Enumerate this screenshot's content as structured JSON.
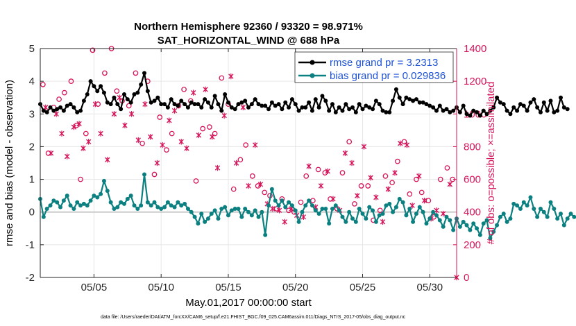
{
  "chart_data": {
    "type": "line",
    "title_line1": "Northern Hemisphere 92360 / 93320 = 98.971%",
    "title_line2": "SAT_HORIZONTAL_WIND @ 688 hPa",
    "xlabel": "May.01,2017 00:00:00 start",
    "ylabel_left": "rmse and bias (model - observation)",
    "ylabel_right": "# of obs: o=possible; ×=assimilated",
    "footnote": "data file: /Users/raeder/DAI/ATM_forcXX/CAM6_setup/f.e21.FHIST_BGC.f09_025.CAM6assim.011/Diags_NTrS_2017-05/obs_diag_output.nc",
    "xlim": [
      1,
      32
    ],
    "ylim_left": [
      -2,
      5
    ],
    "ylim_right": [
      0,
      1400
    ],
    "x_ticks": [
      5,
      10,
      15,
      20,
      25,
      30
    ],
    "x_tick_labels": [
      "05/05",
      "05/10",
      "05/15",
      "05/20",
      "05/25",
      "05/30"
    ],
    "y_left_ticks": [
      "-2",
      "-1",
      "0",
      "1",
      "2",
      "3",
      "4",
      "5"
    ],
    "y_right_ticks": [
      "0",
      "200",
      "400",
      "600",
      "800",
      "1000",
      "1200",
      "1400"
    ],
    "colors": {
      "rmse": "#000000",
      "bias": "#0c8080",
      "obs": "#d6145a",
      "legend_text": "#1f52d6",
      "zero_line": "#b8b8b8"
    },
    "series": [
      {
        "name": "rmse grand pr = 3.2313",
        "axis": "left",
        "x_start": 1.0,
        "x_step": 0.25,
        "values": [
          3.3,
          3.1,
          3.05,
          3.2,
          3.1,
          3.15,
          3.2,
          3.1,
          3.25,
          3.3,
          3.2,
          3.05,
          3.1,
          3.4,
          3.6,
          4.0,
          3.85,
          3.7,
          3.85,
          3.65,
          3.35,
          3.3,
          3.5,
          3.3,
          3.15,
          3.6,
          3.45,
          3.35,
          3.6,
          3.65,
          3.9,
          4.25,
          3.7,
          3.35,
          3.4,
          3.5,
          3.3,
          3.3,
          3.2,
          3.45,
          3.3,
          3.25,
          3.4,
          3.3,
          3.2,
          3.35,
          3.3,
          3.3,
          3.2,
          3.45,
          3.35,
          3.2,
          3.55,
          3.3,
          3.1,
          3.6,
          3.35,
          3.2,
          3.15,
          3.3,
          3.35,
          3.4,
          3.2,
          3.3,
          3.45,
          3.3,
          3.25,
          3.25,
          3.15,
          3.35,
          3.25,
          3.3,
          3.15,
          3.35,
          3.2,
          3.45,
          3.3,
          3.1,
          3.2,
          3.2,
          3.35,
          3.1,
          3.45,
          3.2,
          3.55,
          3.4,
          3.1,
          3.3,
          3.05,
          3.2,
          3.1,
          3.3,
          3.15,
          3.2,
          3.05,
          3.3,
          3.15,
          3.25,
          3.2,
          3.15,
          3.4,
          3.3,
          3.1,
          3.05,
          3.05,
          3.4,
          3.75,
          3.5,
          3.3,
          3.5,
          3.45,
          3.4,
          3.45,
          3.35,
          3.35,
          3.3,
          3.25,
          3.2,
          3.1,
          3.25,
          3.1,
          3.15,
          3.05,
          3.1,
          3.2,
          3.05,
          3.25,
          3.0,
          2.95,
          3.1,
          3.05,
          2.95,
          3.1,
          3.0,
          3.1,
          3.2,
          3.5,
          3.35,
          3.3,
          3.1,
          3.0,
          3.2,
          3.1,
          3.3,
          3.25,
          3.1,
          3.35,
          3.45,
          3.2,
          3.05,
          3.35,
          3.1,
          3.4,
          3.05,
          3.1,
          3.5,
          3.2,
          3.15
        ]
      },
      {
        "name": "bias grand pr = 0.029836",
        "axis": "left",
        "x_start": 1.0,
        "x_step": 0.25,
        "values": [
          0.4,
          -0.15,
          0.1,
          0.2,
          0.35,
          0.3,
          0.15,
          0.35,
          0.5,
          0.2,
          0.1,
          0.3,
          0.2,
          0.25,
          0.2,
          0.35,
          0.5,
          0.45,
          0.55,
          0.95,
          0.65,
          0.3,
          0.1,
          0.15,
          0.3,
          0.25,
          0.4,
          0.5,
          0.2,
          0.1,
          0.2,
          1.15,
          0.3,
          0.2,
          0.3,
          0.15,
          0.1,
          0.15,
          0.3,
          0.2,
          0.15,
          0.3,
          0.2,
          0.25,
          0.1,
          0.0,
          -0.15,
          -0.35,
          -0.05,
          -0.3,
          -0.2,
          -0.05,
          0.05,
          -0.2,
          0.1,
          0.15,
          -0.1,
          0.05,
          0.1,
          0.1,
          -0.15,
          0.1,
          0.0,
          -0.1,
          0.05,
          -0.15,
          0.0,
          -0.7,
          0.2,
          0.7,
          0.35,
          0.2,
          0.35,
          0.15,
          0.3,
          0.2,
          0.05,
          -0.3,
          0.0,
          0.2,
          0.35,
          0.2,
          0.05,
          -0.05,
          0.1,
          0.1,
          -0.35,
          0.1,
          0.2,
          0.05,
          -0.15,
          -0.3,
          0.0,
          -0.2,
          -0.3,
          0.1,
          -0.05,
          -0.2,
          0.15,
          0.05,
          -0.3,
          -0.1,
          -0.05,
          0.2,
          0.25,
          0.0,
          0.15,
          0.4,
          0.3,
          -0.1,
          0.1,
          -0.3,
          -0.05,
          0.15,
          0.0,
          -0.35,
          -0.2,
          0.0,
          -0.1,
          -0.25,
          -0.45,
          -0.15,
          -0.25,
          -0.55,
          -0.2,
          -0.45,
          -0.3,
          -0.4,
          -0.55,
          -0.35,
          -0.5,
          -0.7,
          -0.35,
          -0.25,
          -0.8,
          -0.6,
          -0.4,
          -0.15,
          -0.05,
          -0.3,
          -0.2,
          0.25,
          0.2,
          0.1,
          0.3,
          0.2,
          0.45,
          0.1,
          -0.15,
          0.1,
          0.0,
          -0.15,
          0.3,
          0.1,
          -0.2,
          -0.05,
          -0.4,
          -0.2,
          -0.05,
          -0.15
        ]
      },
      {
        "name": "obs possible",
        "axis": "right",
        "marker": "o",
        "x": [
          1.2,
          1.6,
          2.0,
          2.4,
          2.8,
          3.3,
          3.7,
          4.0,
          4.4,
          4.9,
          5.3,
          5.8,
          6.3,
          6.7,
          7.1,
          7.6,
          8.1,
          8.6,
          9.0,
          9.5,
          9.9,
          10.4,
          10.8,
          11.3,
          11.7,
          12.2,
          12.6,
          13.1,
          13.6,
          14.0,
          14.5,
          15.0,
          15.4,
          15.9,
          16.3,
          16.8,
          17.2,
          17.7,
          18.1,
          18.6,
          19.0,
          19.5,
          19.9,
          20.4,
          20.8,
          21.3,
          21.7,
          22.2,
          22.6,
          23.1,
          23.5,
          24.0,
          24.4,
          24.9,
          25.4,
          25.8,
          26.3,
          26.7,
          27.2,
          27.6,
          28.1,
          28.5,
          29.0,
          29.4,
          29.9,
          30.3,
          30.8,
          31.3,
          31.7
        ],
        "values": [
          1180,
          760,
          1040,
          1090,
          1130,
          1200,
          930,
          600,
          880,
          1390,
          1060,
          1250,
          1400,
          1140,
          1080,
          1050,
          1250,
          820,
          1200,
          630,
          980,
          780,
          880,
          1050,
          1150,
          1080,
          590,
          910,
          920,
          880,
          1220,
          1060,
          540,
          720,
          810,
          620,
          560,
          520,
          500,
          420,
          480,
          410,
          400,
          460,
          620,
          470,
          660,
          640,
          480,
          420,
          640,
          830,
          450,
          560,
          560,
          350,
          410,
          620,
          580,
          710,
          830,
          510,
          600,
          520,
          470,
          370,
          600,
          670,
          600
        ]
      },
      {
        "name": "obs assimilated",
        "axis": "right",
        "marker": "x",
        "x": [
          1.4,
          1.8,
          2.2,
          2.6,
          3.0,
          3.5,
          3.9,
          4.2,
          4.6,
          5.1,
          5.5,
          6.0,
          6.5,
          6.9,
          7.3,
          7.8,
          8.3,
          8.8,
          9.2,
          9.7,
          10.1,
          10.6,
          11.0,
          11.5,
          11.9,
          12.4,
          12.8,
          13.3,
          13.8,
          14.2,
          14.7,
          15.2,
          15.6,
          16.1,
          16.5,
          17.0,
          17.4,
          17.9,
          18.3,
          18.8,
          19.2,
          19.7,
          20.1,
          20.6,
          21.0,
          21.5,
          21.9,
          22.4,
          22.8,
          23.3,
          23.7,
          24.2,
          24.6,
          25.1,
          25.6,
          26.0,
          26.5,
          26.9,
          27.4,
          27.8,
          28.3,
          28.7,
          29.2,
          29.6,
          30.1,
          30.5,
          31.0,
          31.5,
          32.0
        ],
        "values": [
          1040,
          760,
          1000,
          880,
          740,
          920,
          940,
          790,
          830,
          1060,
          880,
          720,
          1000,
          1100,
          930,
          1000,
          840,
          1060,
          860,
          700,
          810,
          960,
          1020,
          830,
          790,
          1130,
          870,
          1150,
          860,
          670,
          990,
          1230,
          700,
          1040,
          560,
          810,
          570,
          450,
          420,
          410,
          340,
          420,
          380,
          370,
          680,
          430,
          560,
          650,
          480,
          410,
          760,
          700,
          500,
          800,
          610,
          490,
          340,
          540,
          640,
          820,
          810,
          440,
          620,
          470,
          360,
          410,
          390,
          570,
          0
        ]
      }
    ]
  }
}
